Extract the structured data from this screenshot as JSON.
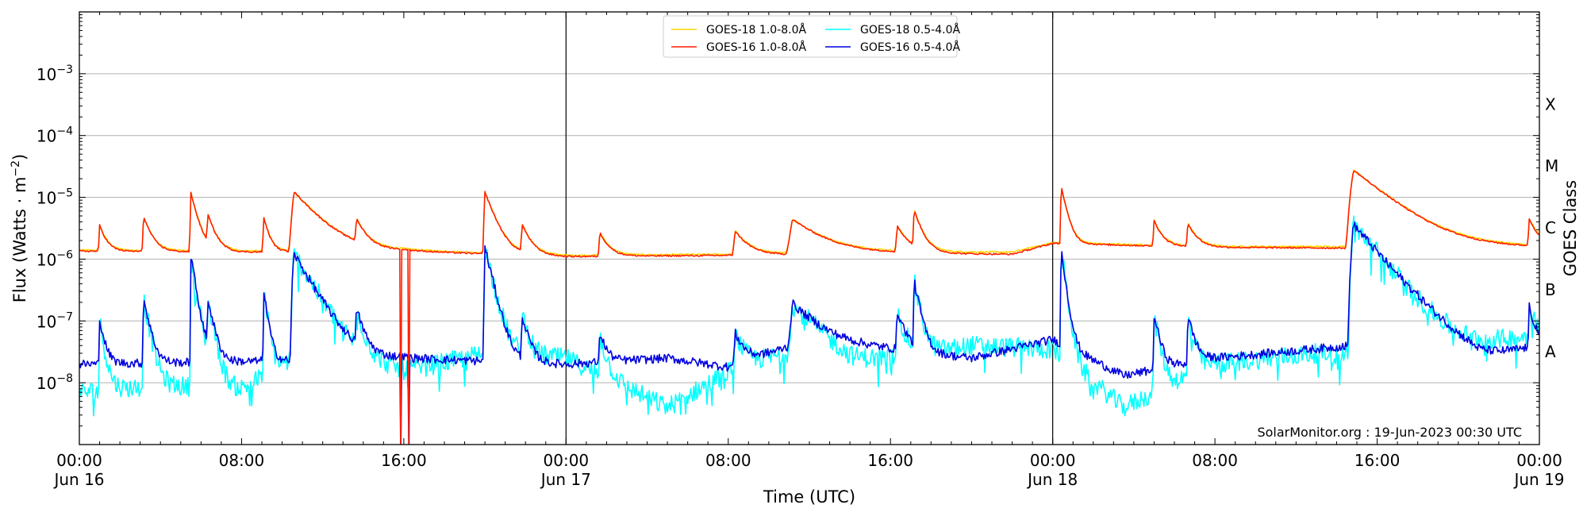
{
  "chart_data": {
    "type": "line",
    "xlabel": "Time (UTC)",
    "ylabel": "Flux (Watts · m",
    "ylabel_sup": "−2",
    "ylabel_suffix": ")",
    "right_label": "GOES Class",
    "watermark": "SolarMonitor.org : 19-Jun-2023 00:30 UTC",
    "y_scale": "log",
    "ylim": [
      1e-09,
      0.01
    ],
    "xlim": [
      "2023-06-16T00:00",
      "2023-06-19T00:00"
    ],
    "grid": "horizontal",
    "legend_position": "top-center",
    "x_ticks": [
      {
        "t": "2023-06-16T00:00",
        "line1": "00:00",
        "line2": "Jun 16"
      },
      {
        "t": "2023-06-16T08:00",
        "line1": "08:00",
        "line2": ""
      },
      {
        "t": "2023-06-16T16:00",
        "line1": "16:00",
        "line2": ""
      },
      {
        "t": "2023-06-17T00:00",
        "line1": "00:00",
        "line2": "Jun 17"
      },
      {
        "t": "2023-06-17T08:00",
        "line1": "08:00",
        "line2": ""
      },
      {
        "t": "2023-06-17T16:00",
        "line1": "16:00",
        "line2": ""
      },
      {
        "t": "2023-06-18T00:00",
        "line1": "00:00",
        "line2": "Jun 18"
      },
      {
        "t": "2023-06-18T08:00",
        "line1": "08:00",
        "line2": ""
      },
      {
        "t": "2023-06-18T16:00",
        "line1": "16:00",
        "line2": ""
      },
      {
        "t": "2023-06-19T00:00",
        "line1": "00:00",
        "line2": "Jun 19"
      }
    ],
    "y_ticks": [
      {
        "value": 1e-08,
        "base": "10",
        "exp": "−8"
      },
      {
        "value": 1e-07,
        "base": "10",
        "exp": "−7"
      },
      {
        "value": 1e-06,
        "base": "10",
        "exp": "−6"
      },
      {
        "value": 1e-05,
        "base": "10",
        "exp": "−5"
      },
      {
        "value": 0.0001,
        "base": "10",
        "exp": "−4"
      },
      {
        "value": 0.001,
        "base": "10",
        "exp": "−3"
      }
    ],
    "day_boundaries": [
      "2023-06-17T00:00",
      "2023-06-18T00:00"
    ],
    "goes_classes": [
      {
        "label": "A",
        "value": 3.2e-08
      },
      {
        "label": "B",
        "value": 3.2e-07
      },
      {
        "label": "C",
        "value": 3.2e-06
      },
      {
        "label": "M",
        "value": 3.2e-05
      },
      {
        "label": "X",
        "value": 0.00032
      }
    ],
    "flares": [
      {
        "t": "2023-06-16T01:00",
        "long_peak": 2.2e-06,
        "short_peak": 9e-08,
        "width_h": 0.3
      },
      {
        "t": "2023-06-16T03:10",
        "long_peak": 3.6e-06,
        "short_peak": 2.2e-07,
        "width_h": 0.35
      },
      {
        "t": "2023-06-16T05:30",
        "long_peak": 1.05e-05,
        "short_peak": 1.1e-06,
        "width_h": 0.3
      },
      {
        "t": "2023-06-16T06:20",
        "long_peak": 3.4e-06,
        "short_peak": 2e-07,
        "width_h": 0.35
      },
      {
        "t": "2023-06-16T09:05",
        "long_peak": 3.6e-06,
        "short_peak": 3e-07,
        "width_h": 0.25
      },
      {
        "t": "2023-06-16T10:35",
        "long_peak": 1.1e-05,
        "short_peak": 1.2e-06,
        "width_h": 1.1
      },
      {
        "t": "2023-06-16T13:40",
        "long_peak": 2.6e-06,
        "short_peak": 1.2e-07,
        "width_h": 0.4
      },
      {
        "t": "2023-06-16T20:00",
        "long_peak": 1.1e-05,
        "short_peak": 1.5e-06,
        "width_h": 0.45
      },
      {
        "t": "2023-06-16T21:50",
        "long_peak": 2.3e-06,
        "short_peak": 1e-07,
        "width_h": 0.4
      },
      {
        "t": "2023-06-17T01:40",
        "long_peak": 1.6e-06,
        "short_peak": 4.5e-08,
        "width_h": 0.4
      },
      {
        "t": "2023-06-17T08:20",
        "long_peak": 1.7e-06,
        "short_peak": 4.5e-08,
        "width_h": 0.6
      },
      {
        "t": "2023-06-17T11:10",
        "long_peak": 3.2e-06,
        "short_peak": 1.5e-07,
        "width_h": 1.4
      },
      {
        "t": "2023-06-17T16:20",
        "long_peak": 2.1e-06,
        "short_peak": 1.1e-07,
        "width_h": 0.5
      },
      {
        "t": "2023-06-17T17:10",
        "long_peak": 4.6e-06,
        "short_peak": 4e-07,
        "width_h": 0.35
      },
      {
        "t": "2023-06-18T00:25",
        "long_peak": 1.35e-05,
        "short_peak": 1.4e-06,
        "width_h": 0.25
      },
      {
        "t": "2023-06-18T05:00",
        "long_peak": 2.6e-06,
        "short_peak": 1.1e-07,
        "width_h": 0.35
      },
      {
        "t": "2023-06-18T06:40",
        "long_peak": 2.2e-06,
        "short_peak": 1e-07,
        "width_h": 0.4
      },
      {
        "t": "2023-06-18T14:50",
        "long_peak": 2.6e-05,
        "short_peak": 3.6e-06,
        "width_h": 1.6
      },
      {
        "t": "2023-06-18T23:30",
        "long_peak": 2.8e-06,
        "short_peak": 1.3e-07,
        "width_h": 0.4
      }
    ],
    "dropouts": [
      {
        "series": "GOES-16 1.0-8.0Å",
        "t": "2023-06-16T15:50"
      },
      {
        "series": "GOES-16 1.0-8.0Å",
        "t": "2023-06-16T16:15"
      },
      {
        "series": "GOES-16 0.5-4.0Å",
        "t": "2023-06-16T15:50"
      },
      {
        "series": "GOES-16 0.5-4.0Å",
        "t": "2023-06-16T16:15"
      }
    ],
    "series": [
      {
        "name": "GOES-18 1.0-8.0Å",
        "color": "#FFD700",
        "baseline": [
          [
            "2023-06-16T00:00",
            1.4e-06
          ],
          [
            "2023-06-16T08:00",
            1.35e-06
          ],
          [
            "2023-06-16T16:00",
            1.4e-06
          ],
          [
            "2023-06-17T00:00",
            1.15e-06
          ],
          [
            "2023-06-17T08:00",
            1.2e-06
          ],
          [
            "2023-06-17T16:00",
            1.3e-06
          ],
          [
            "2023-06-17T22:00",
            1.3e-06
          ],
          [
            "2023-06-18T00:00",
            1.85e-06
          ],
          [
            "2023-06-18T08:00",
            1.6e-06
          ],
          [
            "2023-06-18T16:00",
            1.6e-06
          ],
          [
            "2023-06-19T00:00",
            1.6e-06
          ]
        ]
      },
      {
        "name": "GOES-16 1.0-8.0Å",
        "color": "#FF2000",
        "baseline": [
          [
            "2023-06-16T00:00",
            1.35e-06
          ],
          [
            "2023-06-16T08:00",
            1.3e-06
          ],
          [
            "2023-06-16T16:00",
            1.35e-06
          ],
          [
            "2023-06-17T00:00",
            1.1e-06
          ],
          [
            "2023-06-17T08:00",
            1.15e-06
          ],
          [
            "2023-06-17T16:00",
            1.25e-06
          ],
          [
            "2023-06-17T22:00",
            1.2e-06
          ],
          [
            "2023-06-18T00:00",
            1.8e-06
          ],
          [
            "2023-06-18T08:00",
            1.55e-06
          ],
          [
            "2023-06-18T16:00",
            1.5e-06
          ],
          [
            "2023-06-19T00:00",
            1.55e-06
          ]
        ]
      },
      {
        "name": "GOES-18 0.5-4.0Å",
        "color": "#00FFFF",
        "baseline": [
          [
            "2023-06-16T00:00",
            7e-09
          ],
          [
            "2023-06-16T04:00",
            9e-09
          ],
          [
            "2023-06-16T08:00",
            8e-09
          ],
          [
            "2023-06-16T11:00",
            3e-08
          ],
          [
            "2023-06-16T16:00",
            1.5e-08
          ],
          [
            "2023-06-16T20:00",
            3e-08
          ],
          [
            "2023-06-17T00:00",
            2.5e-08
          ],
          [
            "2023-06-17T05:00",
            4e-09
          ],
          [
            "2023-06-17T08:00",
            1.5e-08
          ],
          [
            "2023-06-17T12:00",
            4e-08
          ],
          [
            "2023-06-17T14:00",
            2e-08
          ],
          [
            "2023-06-17T20:00",
            4e-08
          ],
          [
            "2023-06-18T00:00",
            3.5e-08
          ],
          [
            "2023-06-18T03:30",
            4e-09
          ],
          [
            "2023-06-18T08:00",
            2e-08
          ],
          [
            "2023-06-18T13:00",
            3e-08
          ],
          [
            "2023-06-18T18:00",
            2.5e-08
          ],
          [
            "2023-06-19T00:00",
            6e-08
          ]
        ]
      },
      {
        "name": "GOES-16 0.5-4.0Å",
        "color": "#0000E0",
        "baseline": [
          [
            "2023-06-16T00:00",
            2e-08
          ],
          [
            "2023-06-16T08:00",
            2.2e-08
          ],
          [
            "2023-06-16T16:00",
            2.5e-08
          ],
          [
            "2023-06-17T00:00",
            2e-08
          ],
          [
            "2023-06-17T05:00",
            2.5e-08
          ],
          [
            "2023-06-17T08:00",
            1.8e-08
          ],
          [
            "2023-06-17T12:00",
            5e-08
          ],
          [
            "2023-06-17T20:00",
            2.5e-08
          ],
          [
            "2023-06-18T00:00",
            5e-08
          ],
          [
            "2023-06-18T03:30",
            1.3e-08
          ],
          [
            "2023-06-18T08:00",
            2.5e-08
          ],
          [
            "2023-06-18T18:00",
            5e-08
          ],
          [
            "2023-06-18T21:00",
            2.2e-08
          ],
          [
            "2023-06-19T00:00",
            4e-08
          ]
        ]
      }
    ]
  }
}
